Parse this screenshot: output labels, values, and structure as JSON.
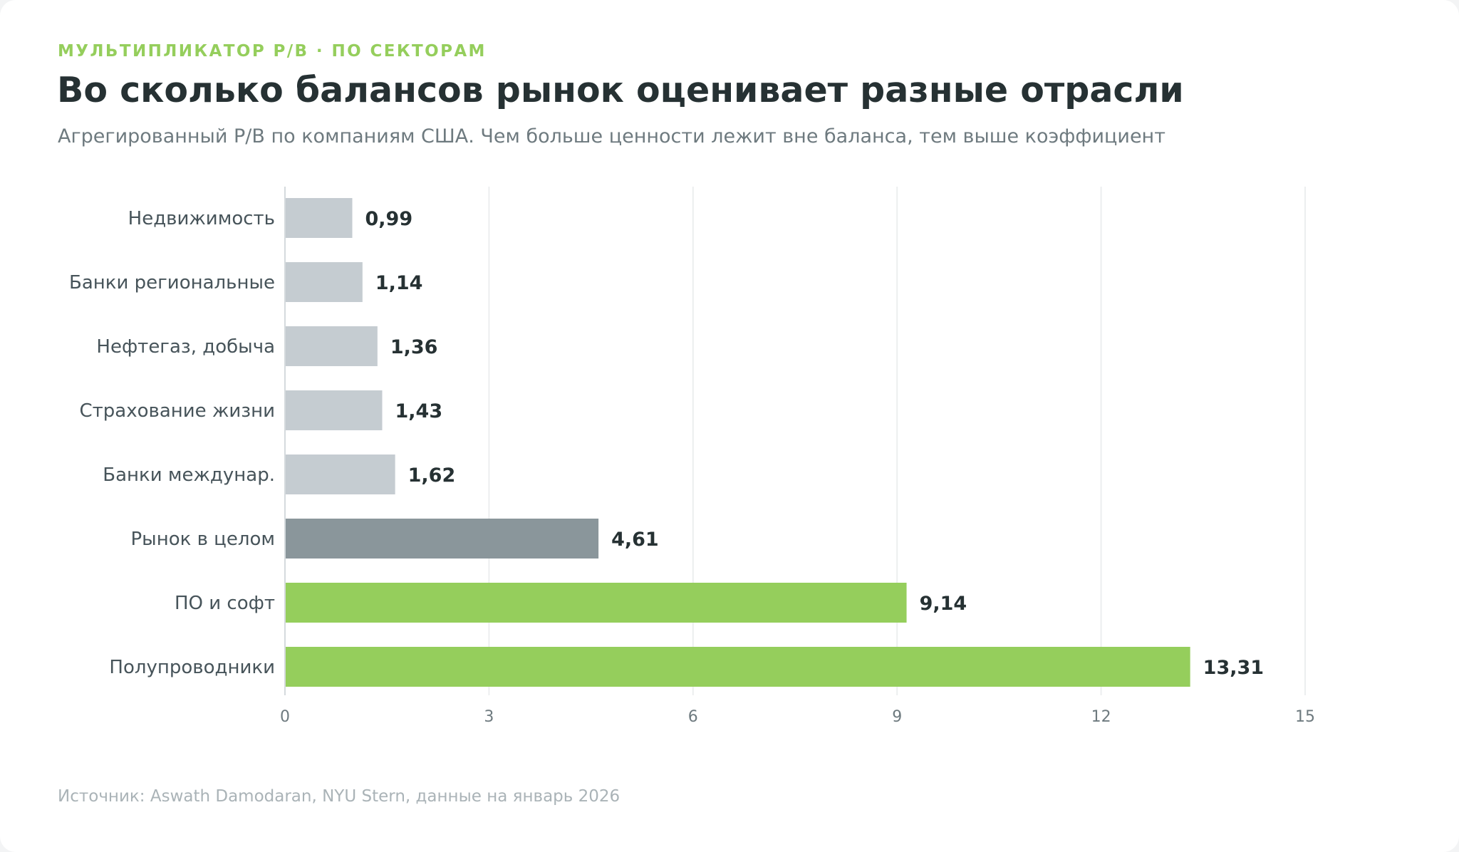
{
  "header": {
    "eyebrow": "МУЛЬТИПЛИКАТОР P/B · ПО СЕКТОРАМ",
    "title": "Во сколько балансов рынок оценивает разные отрасли",
    "subtitle": "Агрегированный P/B по компаниям США. Чем больше ценности лежит вне баланса, тем выше коэффициент"
  },
  "footer": {
    "source": "Источник: Aswath Damodaran, NYU Stern, данные на январь 2026"
  },
  "colors": {
    "low": "#c5ccd1",
    "market": "#8a969b",
    "high": "#95ce5c",
    "grid": "#eceeef"
  },
  "chart_data": {
    "type": "bar",
    "orientation": "horizontal",
    "categories": [
      "Недвижимость",
      "Банки региональные",
      "Нефтегаз, добыча",
      "Страхование жизни",
      "Банки междунар.",
      "Рынок в целом",
      "ПО и софт",
      "Полупроводники"
    ],
    "values": [
      0.99,
      1.14,
      1.36,
      1.43,
      1.62,
      4.61,
      9.14,
      13.31
    ],
    "value_labels": [
      "0,99",
      "1,14",
      "1,36",
      "1,43",
      "1,62",
      "4,61",
      "9,14",
      "13,31"
    ],
    "bar_color_keys": [
      "low",
      "low",
      "low",
      "low",
      "low",
      "market",
      "high",
      "high"
    ],
    "xlim": [
      0,
      15
    ],
    "xticks": [
      0,
      3,
      6,
      9,
      12,
      15
    ],
    "grid": true,
    "xlabel": "",
    "ylabel": ""
  }
}
